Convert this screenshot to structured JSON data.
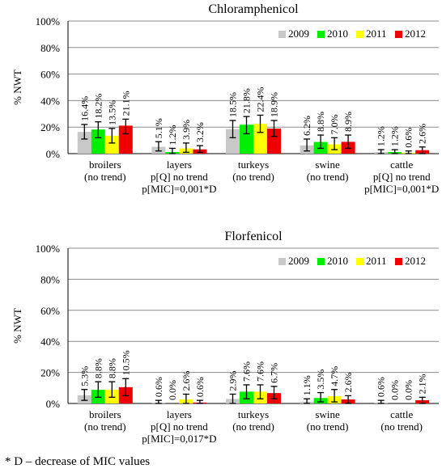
{
  "footnote": "* D – decrease of MIC values",
  "chart_data": [
    {
      "type": "bar",
      "title": "Chloramphenicol",
      "ylabel": "% NWT",
      "ylim": [
        0,
        100
      ],
      "yticks": [
        "0%",
        "20%",
        "40%",
        "60%",
        "80%",
        "100%"
      ],
      "grid": true,
      "legend_position": "top-right",
      "categories": [
        [
          "broilers",
          "(no trend)"
        ],
        [
          "layers",
          "p[Q] no trend",
          "p[MIC]=0,001*D"
        ],
        [
          "turkeys",
          "(no trend)"
        ],
        [
          "swine",
          "(no trend)"
        ],
        [
          "cattle",
          "p[Q] no trend",
          "p[MIC]=0,001*D"
        ]
      ],
      "series": [
        {
          "name": "2009",
          "color": "#c8c8c8",
          "values": [
            16.4,
            5.1,
            18.5,
            6.2,
            1.2
          ],
          "labels": [
            "16.4%",
            "5.1%",
            "18.5%",
            "6.2%",
            "1.2%"
          ],
          "err": [
            [
              11,
              22
            ],
            [
              2,
              9
            ],
            [
              12,
              25
            ],
            [
              2,
              11
            ],
            [
              0,
              3
            ]
          ]
        },
        {
          "name": "2010",
          "color": "#00ee00",
          "values": [
            18.2,
            1.2,
            21.8,
            8.8,
            1.2
          ],
          "labels": [
            "18.2%",
            "1.2%",
            "21.8%",
            "8.8%",
            "1.2%"
          ],
          "err": [
            [
              12,
              24
            ],
            [
              0,
              4
            ],
            [
              15,
              28
            ],
            [
              4,
              14
            ],
            [
              0,
              3
            ]
          ]
        },
        {
          "name": "2011",
          "color": "#ffff00",
          "values": [
            13.5,
            3.9,
            22.4,
            7.0,
            0.6
          ],
          "labels": [
            "13.5%",
            "3.9%",
            "22.4%",
            "7.0%",
            "0.6%"
          ],
          "err": [
            [
              8,
              19
            ],
            [
              1,
              8
            ],
            [
              16,
              29
            ],
            [
              3,
              12
            ],
            [
              0,
              2
            ]
          ]
        },
        {
          "name": "2012",
          "color": "#ee0000",
          "values": [
            21.1,
            3.2,
            18.9,
            8.9,
            2.6
          ],
          "labels": [
            "21.1%",
            "3.2%",
            "18.9%",
            "8.9%",
            "2.6%"
          ],
          "err": [
            [
              15,
              26
            ],
            [
              1,
              6
            ],
            [
              13,
              25
            ],
            [
              4,
              14
            ],
            [
              0,
              5
            ]
          ]
        }
      ]
    },
    {
      "type": "bar",
      "title": "Florfenicol",
      "ylabel": "% NWT",
      "ylim": [
        0,
        100
      ],
      "yticks": [
        "0%",
        "20%",
        "40%",
        "60%",
        "80%",
        "100%"
      ],
      "grid": true,
      "legend_position": "top-right",
      "categories": [
        [
          "broilers",
          "(no trend)"
        ],
        [
          "layers",
          "p[Q] no trend",
          "p[MIC]=0,017*D"
        ],
        [
          "turkeys",
          "(no trend)"
        ],
        [
          "swine",
          "(no trend)"
        ],
        [
          "cattle",
          "(no trend)"
        ]
      ],
      "series": [
        {
          "name": "2009",
          "color": "#c8c8c8",
          "values": [
            5.3,
            0.6,
            2.9,
            1.1,
            0.6
          ],
          "labels": [
            "5.3%",
            "0.6%",
            "2.9%",
            "1.1%",
            "0.6%"
          ],
          "err": [
            [
              2,
              9
            ],
            [
              0,
              2
            ],
            [
              0,
              6
            ],
            [
              0,
              3
            ],
            [
              0,
              2
            ]
          ]
        },
        {
          "name": "2010",
          "color": "#00ee00",
          "values": [
            8.8,
            0.0,
            7.6,
            3.5,
            0.0
          ],
          "labels": [
            "8.8%",
            "0.0%",
            "7.6%",
            "3.5%",
            "0.0%"
          ],
          "err": [
            [
              4,
              14
            ],
            [
              0,
              0
            ],
            [
              3,
              12
            ],
            [
              1,
              7
            ],
            [
              0,
              0
            ]
          ]
        },
        {
          "name": "2011",
          "color": "#ffff00",
          "values": [
            8.8,
            2.6,
            7.6,
            4.7,
            0.0
          ],
          "labels": [
            "8.8%",
            "2.6%",
            "7.6%",
            "4.7%",
            "0.0%"
          ],
          "err": [
            [
              4,
              14
            ],
            [
              0,
              6
            ],
            [
              3,
              12
            ],
            [
              1,
              9
            ],
            [
              0,
              0
            ]
          ]
        },
        {
          "name": "2012",
          "color": "#ee0000",
          "values": [
            10.5,
            0.6,
            6.7,
            2.6,
            2.1
          ],
          "labels": [
            "10.5%",
            "0.6%",
            "6.7%",
            "2.6%",
            "2.1%"
          ],
          "err": [
            [
              5,
              16
            ],
            [
              0,
              2
            ],
            [
              3,
              11
            ],
            [
              0,
              5
            ],
            [
              0,
              4
            ]
          ]
        }
      ]
    }
  ]
}
